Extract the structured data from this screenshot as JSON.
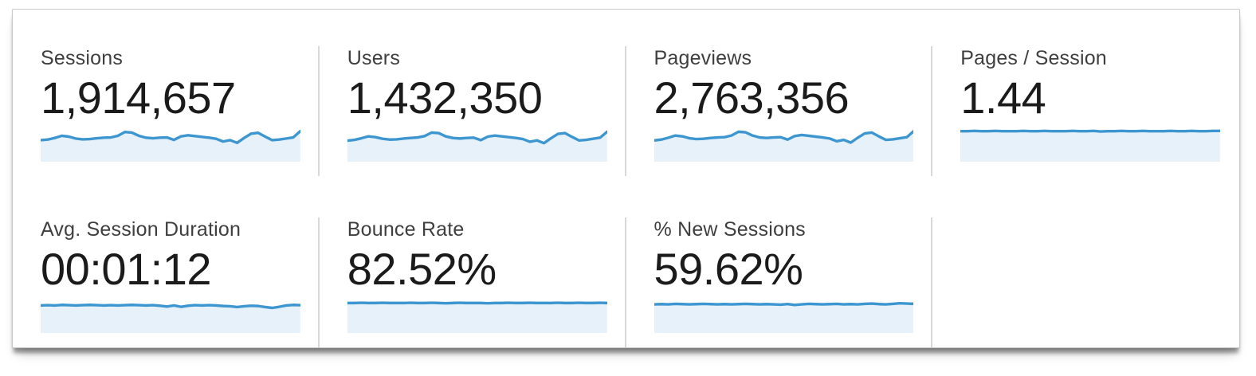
{
  "colors": {
    "line": "#3d96d0",
    "fill": "#e7f1f9",
    "divider": "#d8d8d8",
    "label_text": "#3f3f3f",
    "value_text": "#1b1b1b",
    "panel_bg": "#ffffff",
    "panel_border": "#c9c9c9"
  },
  "metrics": [
    {
      "label": "Sessions",
      "value": "1,914,657",
      "sparkline": [
        0.62,
        0.64,
        0.7,
        0.78,
        0.75,
        0.68,
        0.65,
        0.66,
        0.69,
        0.71,
        0.72,
        0.78,
        0.92,
        0.9,
        0.78,
        0.71,
        0.69,
        0.71,
        0.72,
        0.63,
        0.76,
        0.8,
        0.77,
        0.74,
        0.71,
        0.67,
        0.57,
        0.62,
        0.52,
        0.7,
        0.86,
        0.89,
        0.75,
        0.62,
        0.64,
        0.68,
        0.72,
        0.95
      ]
    },
    {
      "label": "Users",
      "value": "1,432,350",
      "sparkline": [
        0.6,
        0.63,
        0.69,
        0.76,
        0.73,
        0.67,
        0.64,
        0.65,
        0.68,
        0.7,
        0.72,
        0.77,
        0.9,
        0.88,
        0.76,
        0.7,
        0.68,
        0.7,
        0.71,
        0.62,
        0.75,
        0.79,
        0.76,
        0.73,
        0.7,
        0.66,
        0.56,
        0.61,
        0.51,
        0.69,
        0.85,
        0.88,
        0.74,
        0.61,
        0.63,
        0.67,
        0.71,
        0.93
      ]
    },
    {
      "label": "Pageviews",
      "value": "2,763,356",
      "sparkline": [
        0.61,
        0.64,
        0.71,
        0.79,
        0.76,
        0.69,
        0.66,
        0.67,
        0.7,
        0.72,
        0.73,
        0.79,
        0.93,
        0.91,
        0.79,
        0.72,
        0.7,
        0.72,
        0.73,
        0.64,
        0.77,
        0.81,
        0.78,
        0.75,
        0.72,
        0.68,
        0.58,
        0.63,
        0.53,
        0.71,
        0.87,
        0.9,
        0.76,
        0.63,
        0.65,
        0.69,
        0.73,
        0.96
      ]
    },
    {
      "label": "Pages / Session",
      "value": "1.44",
      "sparkline": [
        0.95,
        0.95,
        0.96,
        0.95,
        0.95,
        0.96,
        0.95,
        0.95,
        0.95,
        0.96,
        0.95,
        0.95,
        0.96,
        0.95,
        0.95,
        0.95,
        0.96,
        0.95,
        0.95,
        0.96,
        0.94,
        0.95,
        0.95,
        0.96,
        0.95,
        0.95,
        0.96,
        0.95,
        0.95,
        0.95,
        0.96,
        0.95,
        0.95,
        0.96,
        0.95,
        0.95,
        0.96,
        0.96
      ]
    },
    {
      "label": "Avg. Session Duration",
      "value": "00:01:12",
      "sparkline": [
        0.84,
        0.85,
        0.84,
        0.86,
        0.85,
        0.84,
        0.85,
        0.86,
        0.85,
        0.84,
        0.85,
        0.84,
        0.85,
        0.86,
        0.85,
        0.84,
        0.85,
        0.83,
        0.8,
        0.84,
        0.79,
        0.83,
        0.85,
        0.84,
        0.85,
        0.84,
        0.82,
        0.81,
        0.78,
        0.81,
        0.83,
        0.82,
        0.78,
        0.75,
        0.79,
        0.84,
        0.86,
        0.85
      ]
    },
    {
      "label": "Bounce Rate",
      "value": "82.52%",
      "sparkline": [
        0.93,
        0.93,
        0.94,
        0.93,
        0.93,
        0.94,
        0.93,
        0.93,
        0.93,
        0.94,
        0.93,
        0.93,
        0.94,
        0.93,
        0.92,
        0.93,
        0.94,
        0.93,
        0.93,
        0.93,
        0.92,
        0.93,
        0.93,
        0.94,
        0.93,
        0.93,
        0.94,
        0.93,
        0.93,
        0.93,
        0.94,
        0.93,
        0.93,
        0.94,
        0.93,
        0.93,
        0.94,
        0.93
      ]
    },
    {
      "label": "% New Sessions",
      "value": "59.62%",
      "sparkline": [
        0.88,
        0.89,
        0.88,
        0.9,
        0.89,
        0.88,
        0.89,
        0.9,
        0.89,
        0.88,
        0.89,
        0.88,
        0.89,
        0.9,
        0.89,
        0.88,
        0.89,
        0.88,
        0.87,
        0.89,
        0.86,
        0.88,
        0.9,
        0.89,
        0.88,
        0.89,
        0.9,
        0.88,
        0.89,
        0.88,
        0.9,
        0.91,
        0.89,
        0.88,
        0.9,
        0.92,
        0.91,
        0.9
      ]
    }
  ]
}
